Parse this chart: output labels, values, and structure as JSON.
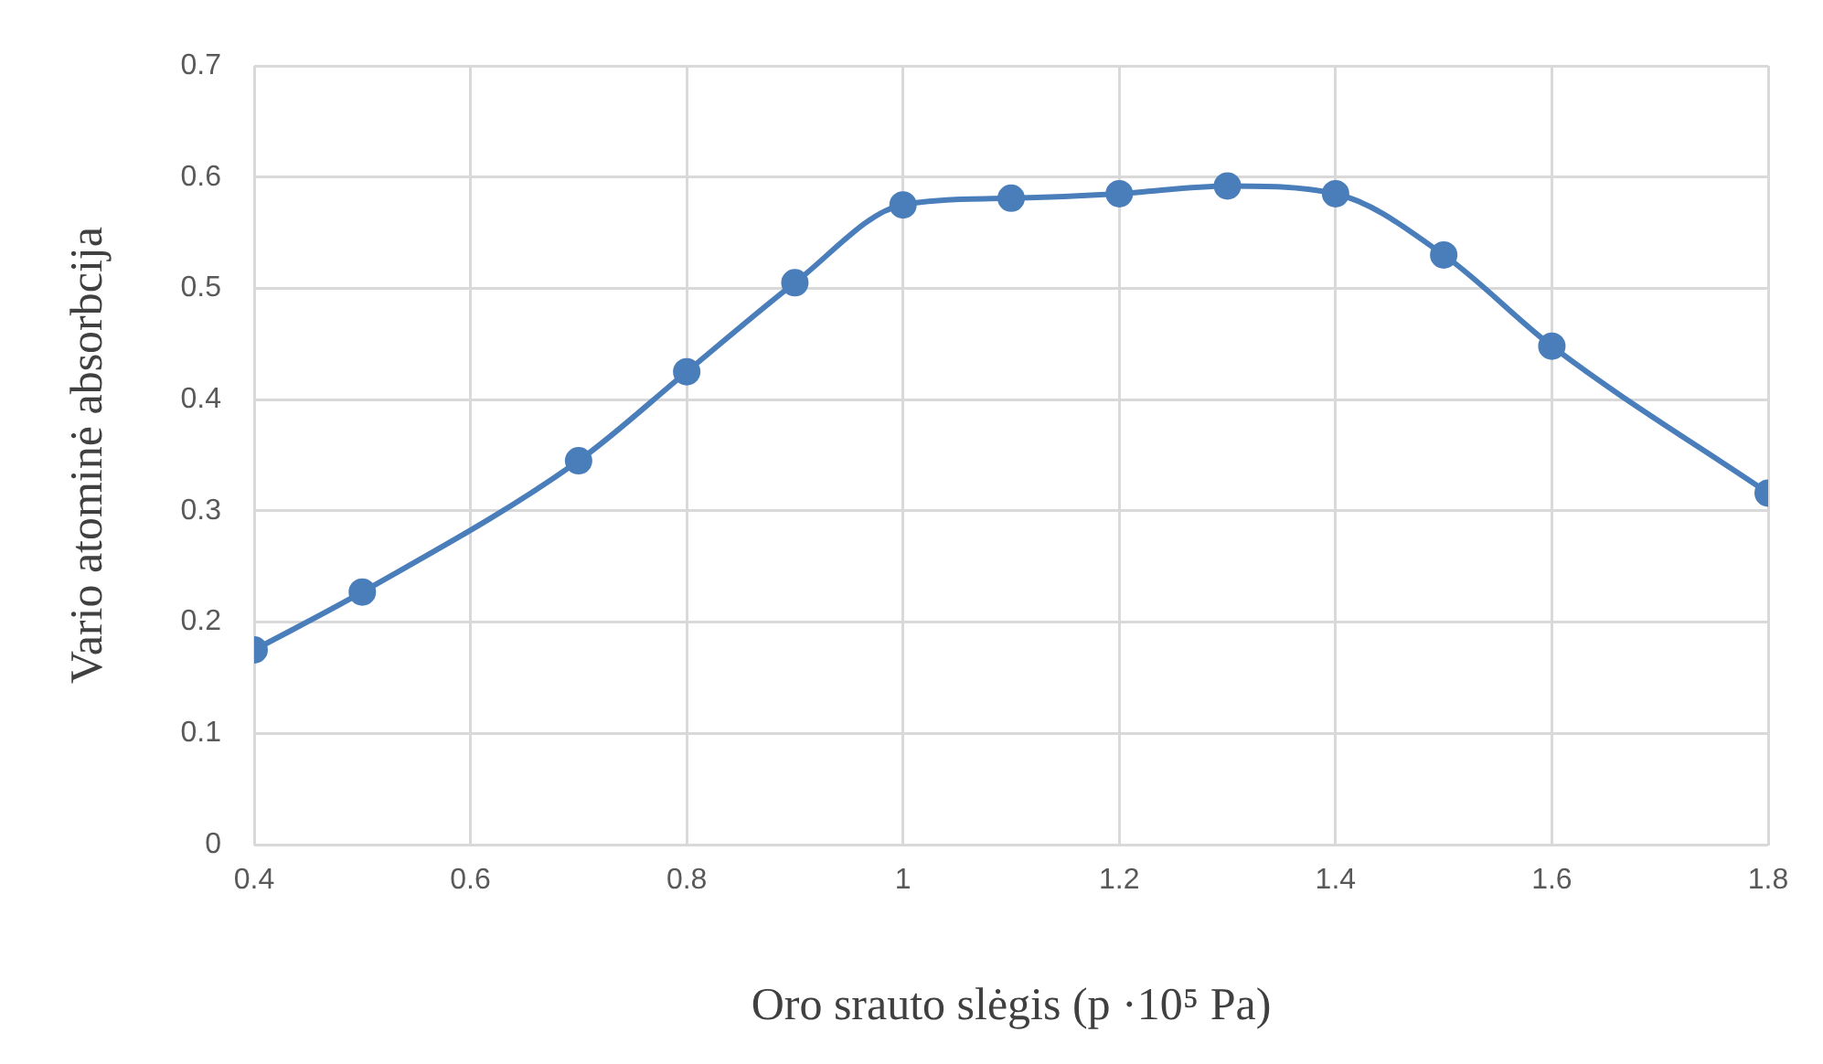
{
  "chart_data": {
    "type": "line",
    "xlabel": "Oro srauto slėgis (p ·10⁵ Pa)",
    "ylabel": "Vario atominė absorbcija",
    "x": [
      0.4,
      0.5,
      0.7,
      0.8,
      0.9,
      1.0,
      1.1,
      1.2,
      1.3,
      1.4,
      1.5,
      1.6,
      1.8
    ],
    "series": [
      {
        "color": "#4a7ebb",
        "values": [
          0.175,
          0.227,
          0.345,
          0.425,
          0.505,
          0.575,
          0.581,
          0.585,
          0.592,
          0.585,
          0.53,
          0.448,
          0.316
        ]
      }
    ],
    "xlim": [
      0.4,
      1.8
    ],
    "xticks": [
      {
        "value": 0.4,
        "label": "0.4"
      },
      {
        "value": 0.6,
        "label": "0.6"
      },
      {
        "value": 0.8,
        "label": "0.8"
      },
      1,
      {
        "value": 1.2,
        "label": "1.2"
      },
      {
        "value": 1.4,
        "label": "1.4"
      },
      {
        "value": 1.6,
        "label": "1.6"
      },
      {
        "value": 1.8,
        "label": "1.8"
      }
    ],
    "ylim": [
      0,
      0.7
    ],
    "yticks": [
      0,
      {
        "value": 0.1,
        "label": "0.1"
      },
      {
        "value": 0.2,
        "label": "0.2"
      },
      {
        "value": 0.3,
        "label": "0.3"
      },
      {
        "value": 0.4,
        "label": "0.4"
      },
      {
        "value": 0.5,
        "label": "0.5"
      },
      {
        "value": 0.6,
        "label": "0.6"
      },
      {
        "value": 0.7,
        "label": "0.7"
      }
    ],
    "grid": true,
    "legend": false,
    "marker": "circle",
    "line_style": "solid"
  }
}
